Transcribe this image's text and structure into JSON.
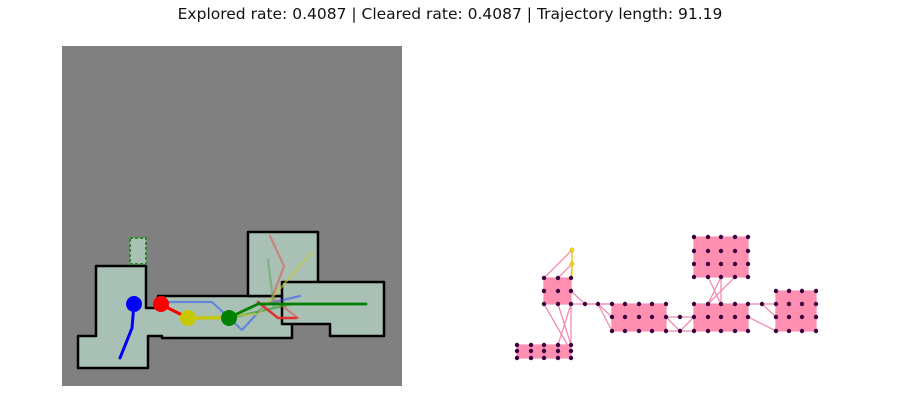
{
  "header": {
    "title": "Explored rate: 0.4087 | Cleared rate: 0.4087 | Trajectory length: 91.19"
  },
  "colors": {
    "unknown": "#808080",
    "free": "#a9c1b4",
    "wall": "#000000",
    "agent_blue": "#0000ff",
    "agent_red": "#ff0000",
    "agent_yellow": "#c8c800",
    "agent_green": "#008000",
    "graph_edge": "#f28db2",
    "graph_cell": "#ff8fb0",
    "graph_node": "#3a0040",
    "graph_frontier": "#f5d000"
  },
  "agents": [
    {
      "name": "blue",
      "color": "#0000ff"
    },
    {
      "name": "red",
      "color": "#ff0000"
    },
    {
      "name": "yellow",
      "color": "#c8c800"
    },
    {
      "name": "green",
      "color": "#008000"
    }
  ]
}
